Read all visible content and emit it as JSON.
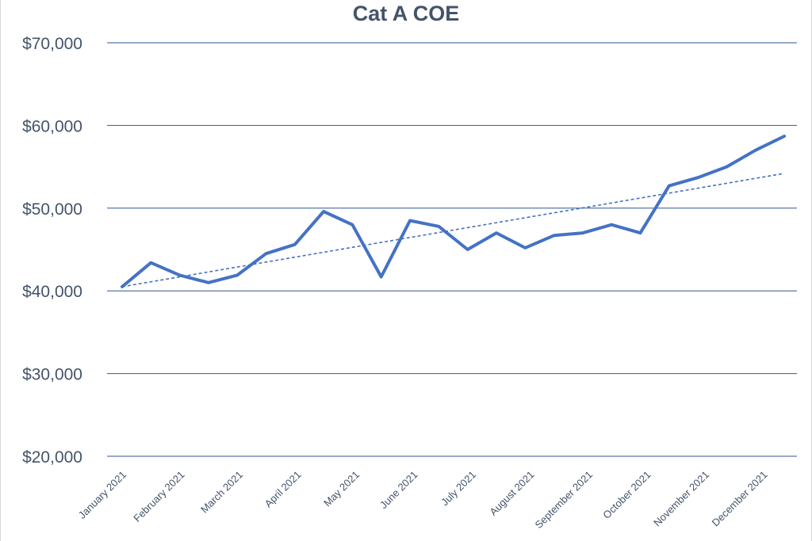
{
  "chart_data": {
    "type": "line",
    "title": "Cat A COE",
    "xlabel": "",
    "ylabel": "",
    "ylim": [
      20000,
      70000
    ],
    "y_ticks": [
      20000,
      30000,
      40000,
      50000,
      60000,
      70000
    ],
    "y_tick_labels": [
      "$20,000",
      "$30,000",
      "$40,000",
      "$50,000",
      "$60,000",
      "$70,000"
    ],
    "x_tick_labels": [
      "January 2021",
      "February 2021",
      "March 2021",
      "April 2021",
      "May 2021",
      "June 2021",
      "July 2021",
      "August 2021",
      "September 2021",
      "October 2021",
      "November 2021",
      "December 2021"
    ],
    "grid": true,
    "legend": "none",
    "series": [
      {
        "name": "Cat A COE",
        "color": "#4472c4",
        "values": [
          40500,
          43400,
          41900,
          41000,
          41900,
          44500,
          45600,
          49600,
          48000,
          41700,
          48500,
          47800,
          45000,
          47000,
          45200,
          46700,
          47000,
          48000,
          47000,
          52700,
          53700,
          55000,
          57000,
          58700
        ]
      }
    ],
    "trendline": {
      "type": "linear",
      "style": "dashed",
      "color": "#4472c4",
      "start_value": 40500,
      "end_value": 54200
    }
  }
}
